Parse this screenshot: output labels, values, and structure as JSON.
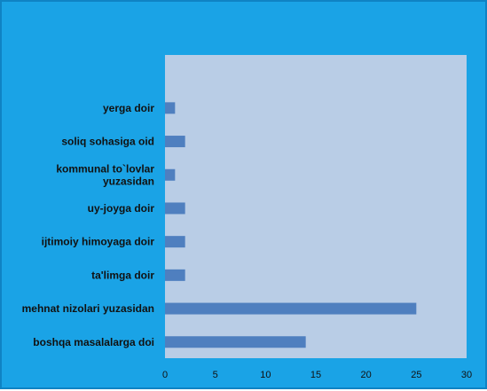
{
  "colors": {
    "background": "#1aa3e6",
    "plot_area": "#b9cde6",
    "bar": "#4f7fbf",
    "text": "#111111"
  },
  "chart_data": {
    "type": "bar",
    "orientation": "horizontal",
    "categories": [
      "yerga doir",
      "soliq sohasiga oid",
      "kommunal to`lovlar yuzasidan",
      "uy-joyga doir",
      "ijtimoiy himoyaga doir",
      "ta'limga doir",
      "mehnat nizolari yuzasidan",
      "boshqa masalalarga doi"
    ],
    "values": [
      1,
      2,
      1,
      2,
      2,
      2,
      25,
      14
    ],
    "xlim": [
      0,
      30
    ],
    "xticks": [
      0,
      5,
      10,
      15,
      20,
      25,
      30
    ],
    "grid": false,
    "legend": "none"
  }
}
